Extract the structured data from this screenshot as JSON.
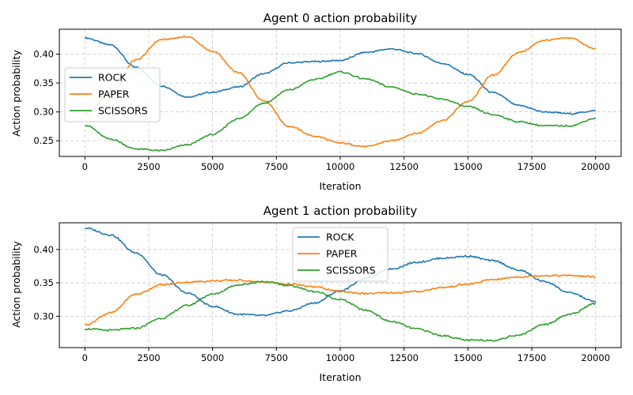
{
  "colors": {
    "ROCK": "#1f77b4",
    "PAPER": "#ff7f0e",
    "SCISSORS": "#2ca02c"
  },
  "chart_data": [
    {
      "type": "line",
      "title": "Agent 0 action probability",
      "xlabel": "Iteration",
      "ylabel": "Action probability",
      "xlim": [
        -1000,
        21000
      ],
      "ylim": [
        0.223,
        0.443
      ],
      "xticks": [
        0,
        2500,
        5000,
        7500,
        10000,
        12500,
        15000,
        17500,
        20000
      ],
      "yticks": [
        0.25,
        0.3,
        0.35,
        0.4
      ],
      "ytick_labels": [
        "0.25",
        "0.30",
        "0.35",
        "0.40"
      ],
      "grid": true,
      "legend": "center-left",
      "x": [
        0,
        1000,
        2000,
        3000,
        4000,
        5000,
        6000,
        7000,
        8000,
        9000,
        10000,
        11000,
        12000,
        13000,
        14000,
        15000,
        16000,
        17000,
        18000,
        19000,
        20000
      ],
      "series": [
        {
          "name": "ROCK",
          "values": [
            0.428,
            0.416,
            0.377,
            0.345,
            0.326,
            0.334,
            0.343,
            0.366,
            0.385,
            0.387,
            0.389,
            0.403,
            0.409,
            0.401,
            0.384,
            0.365,
            0.333,
            0.311,
            0.3,
            0.297,
            0.302
          ]
        },
        {
          "name": "PAPER",
          "values": [
            0.297,
            0.33,
            0.39,
            0.425,
            0.43,
            0.405,
            0.368,
            0.32,
            0.275,
            0.258,
            0.246,
            0.24,
            0.25,
            0.263,
            0.285,
            0.318,
            0.364,
            0.403,
            0.424,
            0.428,
            0.409
          ]
        },
        {
          "name": "SCISSORS",
          "values": [
            0.277,
            0.253,
            0.236,
            0.233,
            0.243,
            0.261,
            0.288,
            0.315,
            0.338,
            0.356,
            0.369,
            0.357,
            0.343,
            0.331,
            0.322,
            0.309,
            0.295,
            0.283,
            0.276,
            0.276,
            0.289
          ]
        }
      ]
    },
    {
      "type": "line",
      "title": "Agent 1 action probability",
      "xlabel": "Iteration",
      "ylabel": "Action probability",
      "xlim": [
        -1000,
        21000
      ],
      "ylim": [
        0.253,
        0.44
      ],
      "xticks": [
        0,
        2500,
        5000,
        7500,
        10000,
        12500,
        15000,
        17500,
        20000
      ],
      "yticks": [
        0.3,
        0.35,
        0.4
      ],
      "ytick_labels": [
        "0.30",
        "0.35",
        "0.40"
      ],
      "grid": true,
      "legend": "upper-center",
      "x": [
        0,
        1000,
        2000,
        3000,
        4000,
        5000,
        6000,
        7000,
        8000,
        9000,
        10000,
        11000,
        12000,
        13000,
        14000,
        15000,
        16000,
        17000,
        18000,
        19000,
        20000
      ],
      "series": [
        {
          "name": "ROCK",
          "values": [
            0.432,
            0.422,
            0.395,
            0.362,
            0.335,
            0.315,
            0.303,
            0.301,
            0.308,
            0.32,
            0.338,
            0.357,
            0.371,
            0.381,
            0.387,
            0.39,
            0.383,
            0.369,
            0.352,
            0.335,
            0.322
          ]
        },
        {
          "name": "PAPER",
          "values": [
            0.287,
            0.305,
            0.333,
            0.347,
            0.351,
            0.353,
            0.354,
            0.351,
            0.348,
            0.344,
            0.337,
            0.334,
            0.335,
            0.337,
            0.343,
            0.348,
            0.355,
            0.359,
            0.361,
            0.361,
            0.359
          ]
        },
        {
          "name": "SCISSORS",
          "values": [
            0.281,
            0.279,
            0.282,
            0.297,
            0.316,
            0.333,
            0.347,
            0.352,
            0.346,
            0.337,
            0.325,
            0.309,
            0.292,
            0.281,
            0.271,
            0.264,
            0.264,
            0.272,
            0.288,
            0.303,
            0.319
          ]
        }
      ]
    }
  ]
}
